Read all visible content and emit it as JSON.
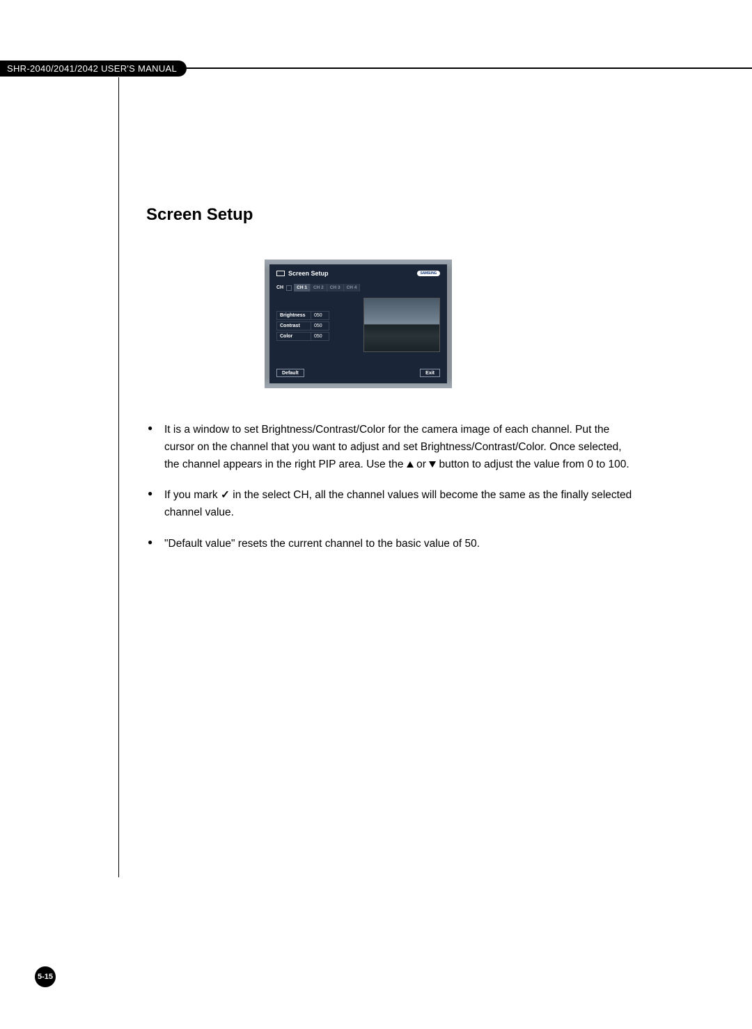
{
  "header": {
    "manual_title": "SHR-2040/2041/2042 USER'S MANUAL"
  },
  "section": {
    "title": "Screen Setup"
  },
  "screenshot": {
    "title": "Screen Setup",
    "logo": "SAMSUNG",
    "ch_label": "CH",
    "channels": [
      "CH 1",
      "CH 2",
      "CH 3",
      "CH 4"
    ],
    "active_channel_index": 0,
    "settings": [
      {
        "label": "Brightness",
        "value": "050"
      },
      {
        "label": "Contrast",
        "value": "050"
      },
      {
        "label": "Color",
        "value": "050"
      }
    ],
    "default_btn": "Default",
    "exit_btn": "Exit",
    "colors": {
      "frame": "#8a9199",
      "panel": "#1a2638",
      "text": "#ffffff",
      "tab_inactive_bg": "#2a3648",
      "tab_active_bg": "#4a5668",
      "border": "#3a4658"
    }
  },
  "bullets": {
    "b1_part1": "It is a window to set Brightness/Contrast/Color for the camera image of each channel. Put the cursor on the channel that you want to adjust and set Brightness/Contrast/Color. Once selected, the channel appears in the right PIP area. Use the ",
    "b1_or": " or ",
    "b1_part2": " button to adjust the value from 0 to 100.",
    "b2_part1": "If you mark ",
    "b2_check": "✓",
    "b2_part2": " in the select CH, all the channel values will become the same as the finally selected channel value.",
    "b3": "\"Default value\" resets the current channel to the basic value of 50."
  },
  "page_number": "5-15"
}
